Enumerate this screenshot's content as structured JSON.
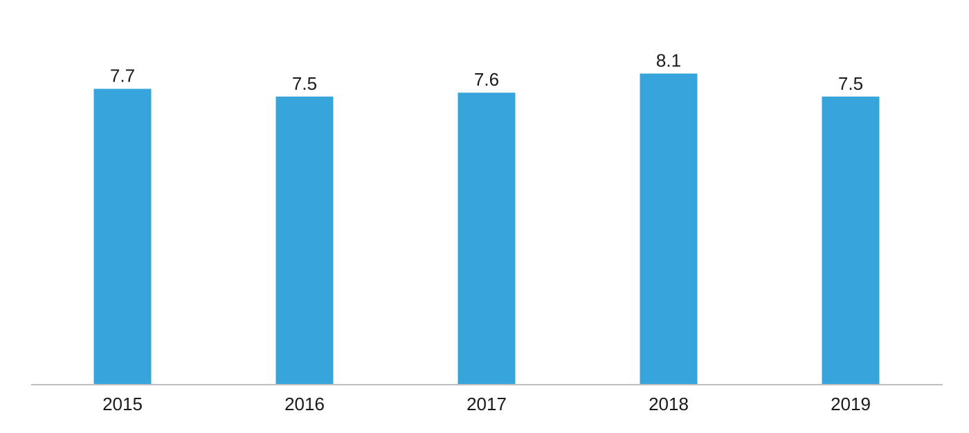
{
  "colors": {
    "bar": "#37a5dc",
    "axis": "#bfbfbf",
    "text": "#1a1a1a",
    "background": "#ffffff"
  },
  "chart_data": {
    "type": "bar",
    "title": "",
    "xlabel": "",
    "ylabel": "",
    "categories": [
      "2015",
      "2016",
      "2017",
      "2018",
      "2019"
    ],
    "values": [
      7.7,
      7.5,
      7.6,
      8.1,
      7.5
    ],
    "value_labels": [
      "7.7",
      "7.5",
      "7.6",
      "8.1",
      "7.5"
    ],
    "grid": false,
    "legend": "none",
    "y_axis_visible": false
  }
}
